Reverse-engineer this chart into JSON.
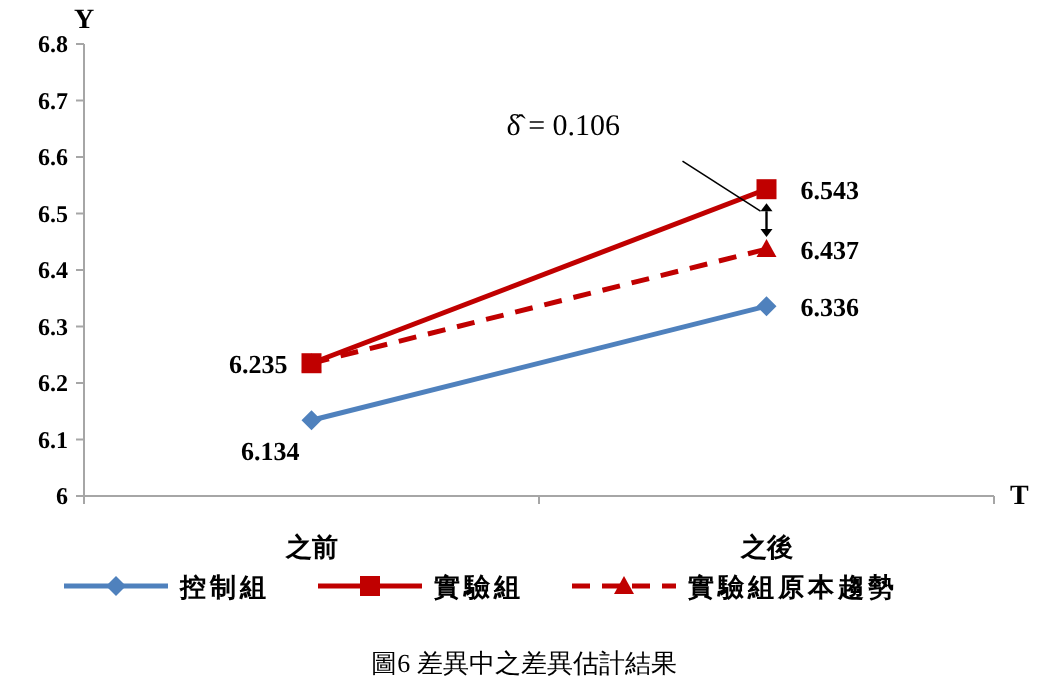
{
  "chart_data": {
    "type": "line",
    "ylabel": "Y",
    "xlabel": "T",
    "categories": [
      "之前",
      "之後"
    ],
    "series": [
      {
        "name": "控制組",
        "color": "#4f81bd",
        "marker": "diamond",
        "line_style": "solid",
        "values": [
          6.134,
          6.336
        ],
        "value_labels": [
          "6.134",
          "6.336"
        ]
      },
      {
        "name": "實驗組",
        "color": "#c00000",
        "marker": "square",
        "line_style": "solid",
        "values": [
          6.235,
          6.543
        ],
        "value_labels": [
          "6.235",
          "6.543"
        ]
      },
      {
        "name": "實驗組原本趨勢",
        "color": "#c00000",
        "marker": "triangle",
        "line_style": "dashed",
        "values": [
          6.235,
          6.437
        ],
        "value_labels": [
          null,
          "6.437"
        ]
      }
    ],
    "ylim": [
      6,
      6.8
    ],
    "yticks": [
      6,
      6.1,
      6.2,
      6.3,
      6.4,
      6.5,
      6.6,
      6.7,
      6.8
    ],
    "grid": false,
    "legend": "bottom",
    "annotations": [
      "δ̂ = 0.106",
      "圖6 差異中之差異估計結果"
    ]
  }
}
